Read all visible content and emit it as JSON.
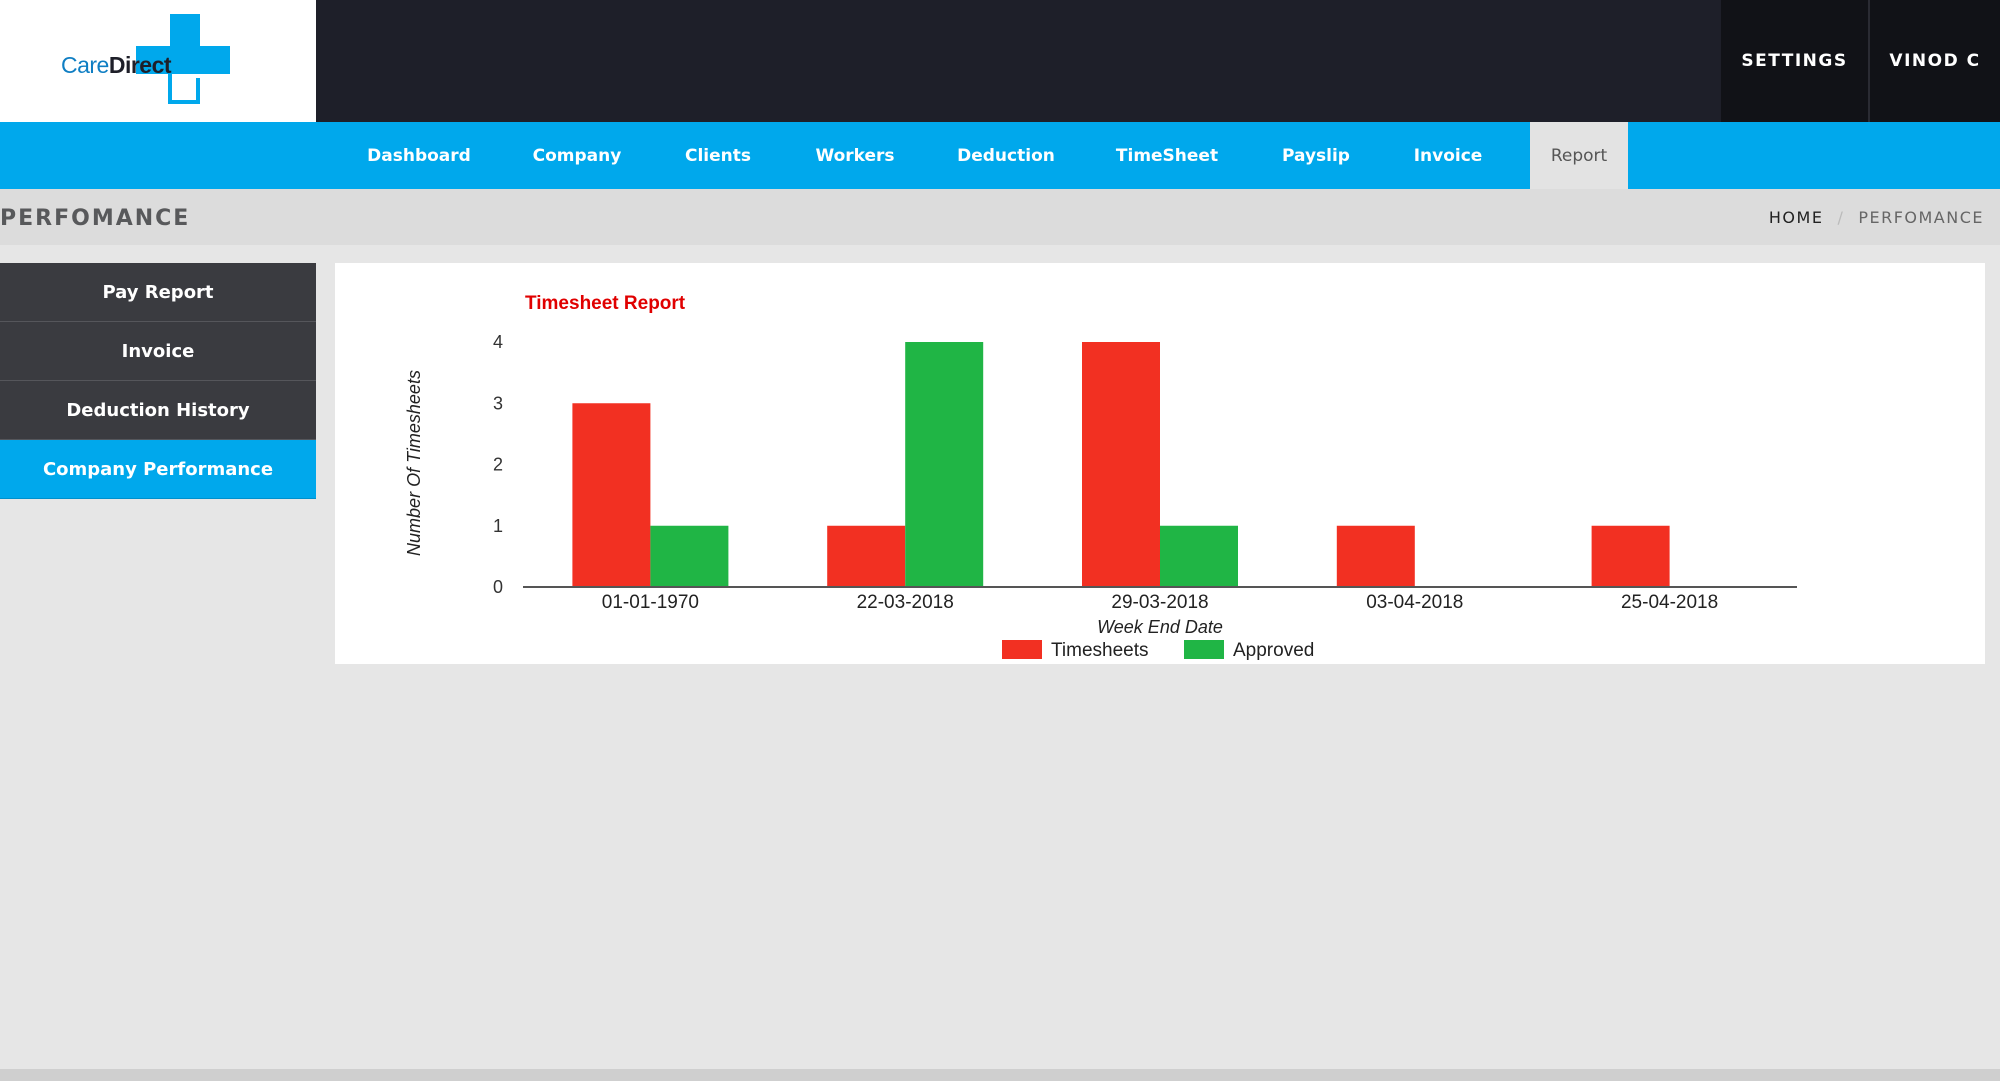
{
  "brand": {
    "logo_care": "Care",
    "logo_direct": "Direct",
    "accent": "#00a8ec",
    "logo_blue": "#0f7ec3"
  },
  "top_menu": {
    "settings": "SETTINGS",
    "user": "VINOD C"
  },
  "nav": {
    "items": [
      {
        "label": "Dashboard"
      },
      {
        "label": "Company"
      },
      {
        "label": "Clients"
      },
      {
        "label": "Workers"
      },
      {
        "label": "Deduction"
      },
      {
        "label": "TimeSheet"
      },
      {
        "label": "Payslip"
      },
      {
        "label": "Invoice"
      },
      {
        "label": "Report",
        "active": true
      }
    ]
  },
  "page": {
    "title": "PERFOMANCE",
    "breadcrumb": {
      "home": "HOME",
      "separator": "/",
      "current": "PERFOMANCE"
    }
  },
  "sidebar": {
    "items": [
      {
        "label": "Pay Report"
      },
      {
        "label": "Invoice"
      },
      {
        "label": "Deduction History"
      },
      {
        "label": "Company Performance",
        "active": true
      }
    ]
  },
  "chart_data": {
    "type": "bar",
    "title": "Timesheet Report",
    "xlabel": "Week End Date",
    "ylabel": "Number Of Timesheets",
    "categories": [
      "01-01-1970",
      "22-03-2018",
      "29-03-2018",
      "03-04-2018",
      "25-04-2018"
    ],
    "series": [
      {
        "name": "Timesheets",
        "values": [
          3,
          1,
          4,
          1,
          1
        ],
        "color": "#f23022"
      },
      {
        "name": "Approved",
        "values": [
          1,
          4,
          1,
          0,
          0
        ],
        "color": "#20b545"
      }
    ],
    "ylim": [
      0,
      4
    ],
    "yticks": [
      "0",
      "1",
      "2",
      "3",
      "4"
    ],
    "grid": false,
    "legend": "bottom-center",
    "title_color": "#e00000"
  }
}
